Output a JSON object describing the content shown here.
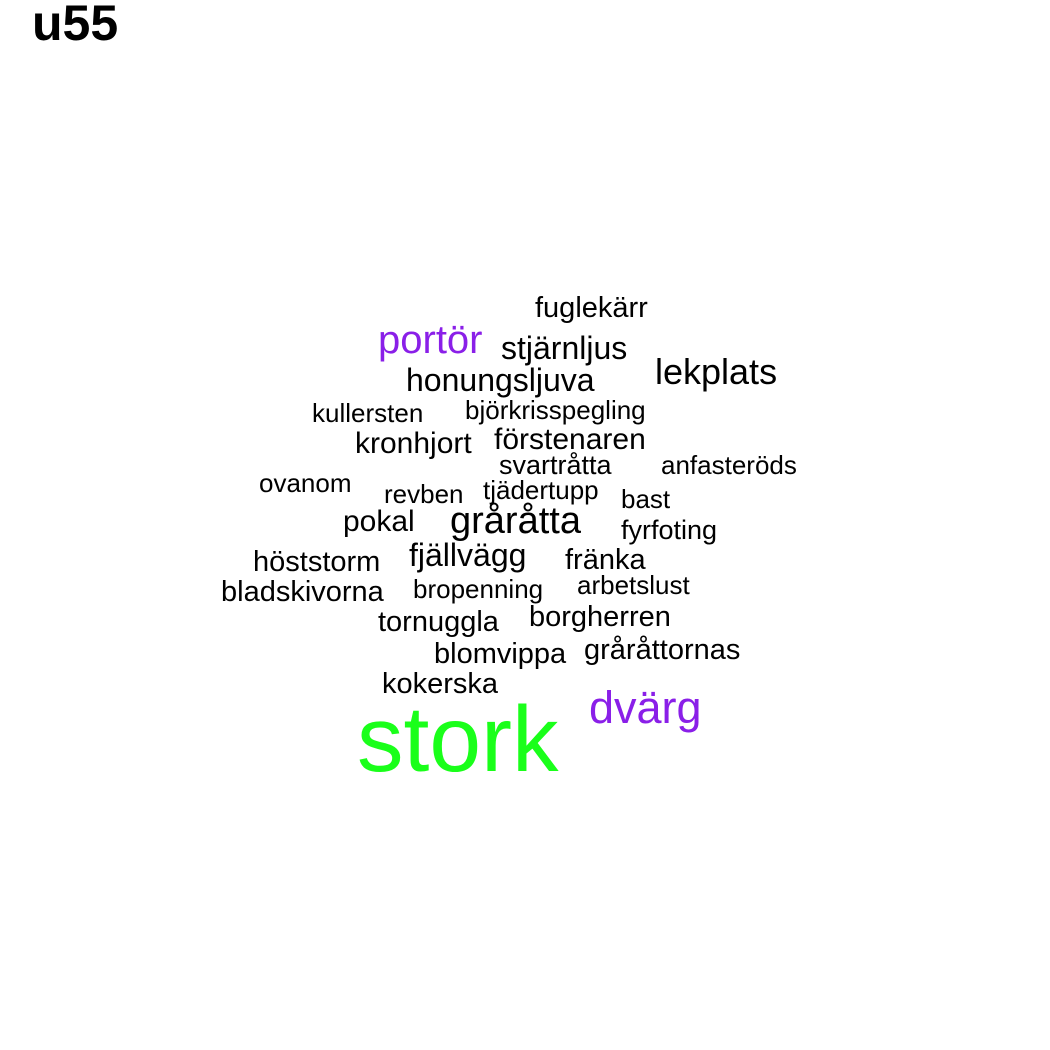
{
  "title": "u55",
  "colors": {
    "default_word": "#000000",
    "accent_purple": "#8a1fe8",
    "accent_green": "#1aff1a"
  },
  "words": {
    "stork": {
      "text": "stork",
      "color": "#1aff1a"
    },
    "dvarg": {
      "text": "dvärg",
      "color": "#8a1fe8"
    },
    "portor": {
      "text": "portör",
      "color": "#8a1fe8"
    },
    "grarat": {
      "text": "gråråtta",
      "color": "#000000"
    },
    "lekplats": {
      "text": "lekplats",
      "color": "#000000"
    },
    "honung": {
      "text": "honungsljuva",
      "color": "#000000"
    },
    "stjarn": {
      "text": "stjärnljus",
      "color": "#000000"
    },
    "fjall": {
      "text": "fjällvägg",
      "color": "#000000"
    },
    "kronhjort": {
      "text": "kronhjort",
      "color": "#000000"
    },
    "forst": {
      "text": "förstenaren",
      "color": "#000000"
    },
    "pokal": {
      "text": "pokal",
      "color": "#000000"
    },
    "fuglek": {
      "text": "fuglekärr",
      "color": "#000000"
    },
    "host": {
      "text": "höststorm",
      "color": "#000000"
    },
    "franka": {
      "text": "fränka",
      "color": "#000000"
    },
    "kokerska": {
      "text": "kokerska",
      "color": "#000000"
    },
    "bladsk": {
      "text": "bladskivorna",
      "color": "#000000"
    },
    "tornuggla": {
      "text": "tornuggla",
      "color": "#000000"
    },
    "borgh": {
      "text": "borgherren",
      "color": "#000000"
    },
    "blomv": {
      "text": "blomvippa",
      "color": "#000000"
    },
    "grarattorn": {
      "text": "gråråttornas",
      "color": "#000000"
    },
    "svart": {
      "text": "svartråtta",
      "color": "#000000"
    },
    "fyrf": {
      "text": "fyrfoting",
      "color": "#000000"
    },
    "kuller": {
      "text": "kullersten",
      "color": "#000000"
    },
    "bjork": {
      "text": "björkrisspegling",
      "color": "#000000"
    },
    "anfast": {
      "text": "anfasteröds",
      "color": "#000000"
    },
    "ovanom": {
      "text": "ovanom",
      "color": "#000000"
    },
    "revben": {
      "text": "revben",
      "color": "#000000"
    },
    "tjader": {
      "text": "tjädertupp",
      "color": "#000000"
    },
    "bast": {
      "text": "bast",
      "color": "#000000"
    },
    "bropen": {
      "text": "bropenning",
      "color": "#000000"
    },
    "arbets": {
      "text": "arbetslust",
      "color": "#000000"
    }
  }
}
